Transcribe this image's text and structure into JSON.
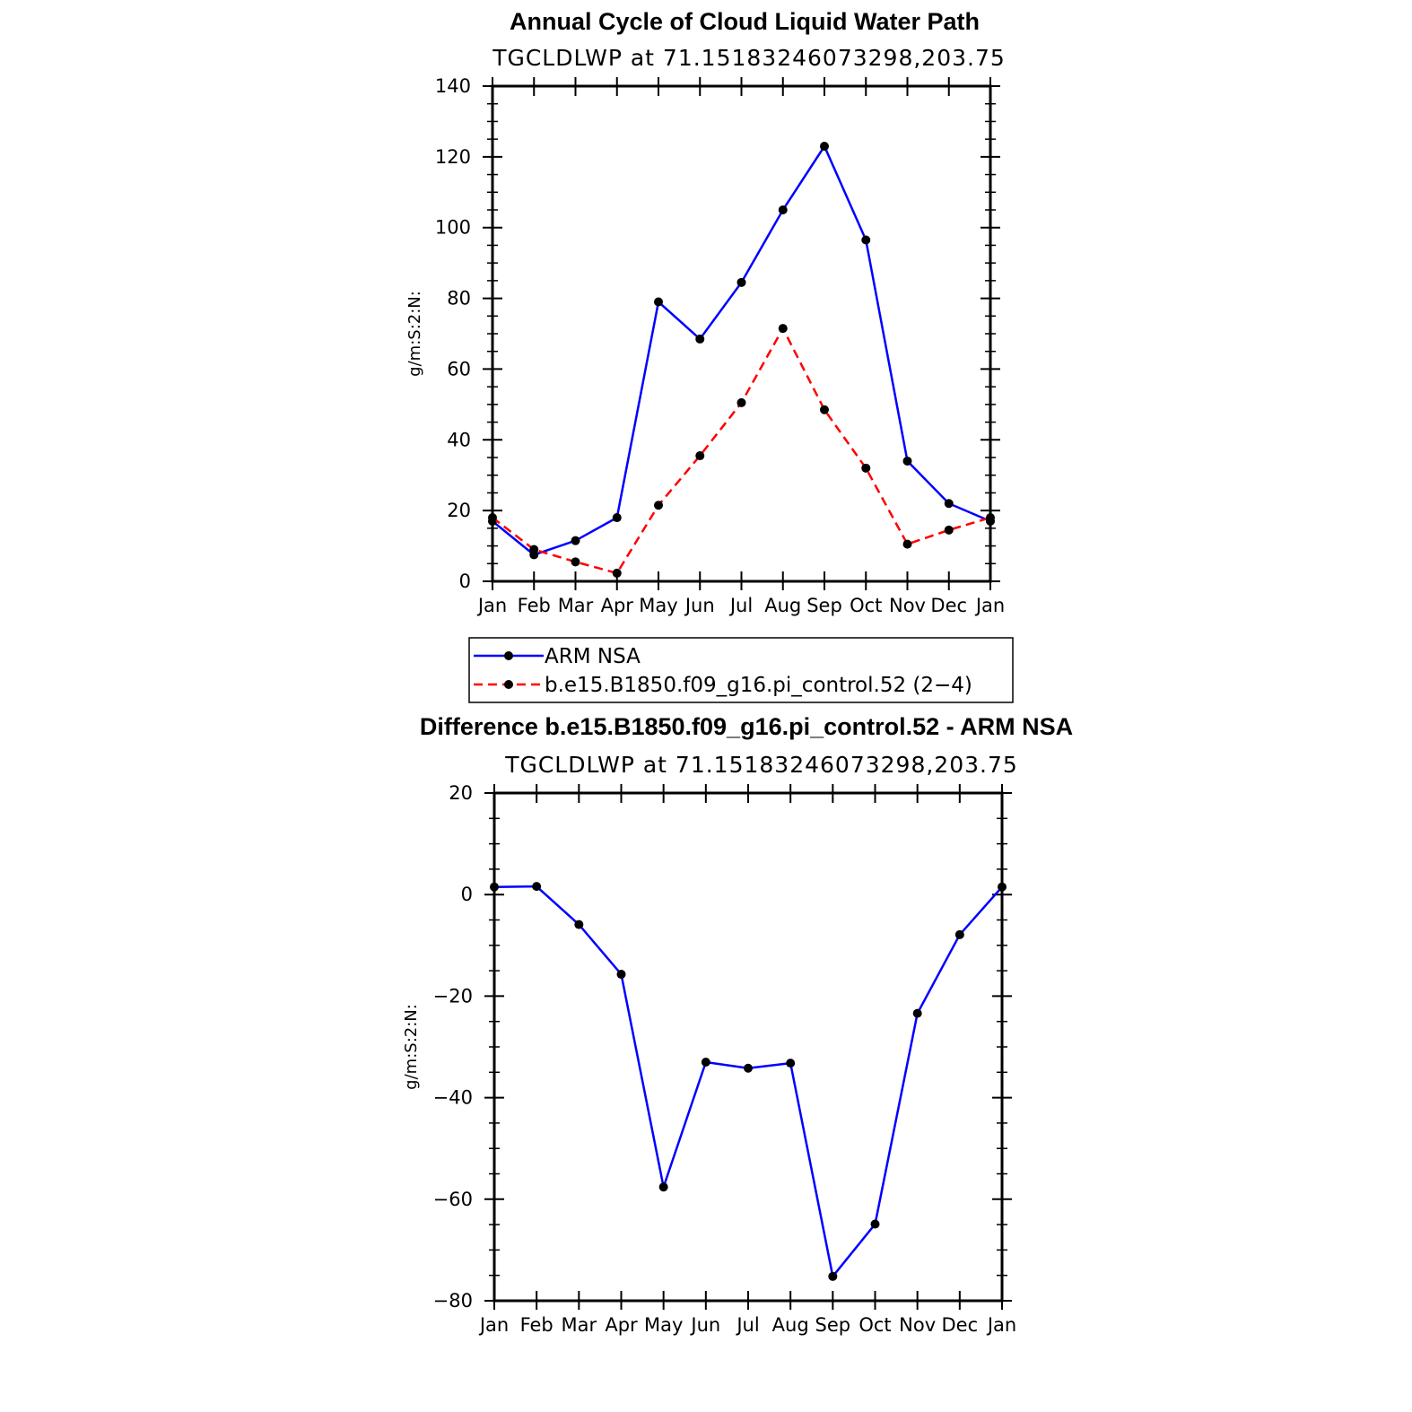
{
  "colors": {
    "obs": "#0000ff",
    "model": "#ff0000",
    "marker": "#000000",
    "axis": "#000000"
  },
  "chart_data": [
    {
      "type": "line",
      "title": "Annual Cycle of Cloud Liquid Water Path",
      "subtitle": "TGCLDLWP at 71.15183246073298,203.75",
      "xlabel": "",
      "ylabel": "g/m:S:2:N:",
      "categories": [
        "Jan",
        "Feb",
        "Mar",
        "Apr",
        "May",
        "Jun",
        "Jul",
        "Aug",
        "Sep",
        "Oct",
        "Nov",
        "Dec",
        "Jan"
      ],
      "ylim": [
        0,
        140
      ],
      "yticks": [
        0,
        20,
        40,
        60,
        80,
        100,
        120,
        140
      ],
      "series": [
        {
          "name": "ARM NSA",
          "style": "solid",
          "color": "#0000ff",
          "values": [
            17,
            7.5,
            11.5,
            18,
            79,
            68.5,
            84.5,
            105,
            123,
            96.5,
            34,
            22,
            17
          ]
        },
        {
          "name": "b.e15.B1850.f09_g16.pi_control.52 (2−4)",
          "style": "dashed",
          "color": "#ff0000",
          "values": [
            18,
            9,
            5.5,
            2.3,
            21.5,
            35.5,
            50.5,
            71.5,
            48.5,
            32,
            10.5,
            14.5,
            18
          ]
        }
      ],
      "legend": "bottom"
    },
    {
      "type": "line",
      "title": "Difference b.e15.B1850.f09_g16.pi_control.52 - ARM NSA",
      "subtitle": "TGCLDLWP at 71.15183246073298,203.75",
      "xlabel": "",
      "ylabel": "g/m:S:2:N:",
      "categories": [
        "Jan",
        "Feb",
        "Mar",
        "Apr",
        "May",
        "Jun",
        "Jul",
        "Aug",
        "Sep",
        "Oct",
        "Nov",
        "Dec",
        "Jan"
      ],
      "ylim": [
        -80,
        20
      ],
      "yticks": [
        -80,
        -60,
        -40,
        -20,
        0,
        20
      ],
      "ytick_labels": [
        "−80",
        "−60",
        "−40",
        "−20",
        "0",
        "20"
      ],
      "series": [
        {
          "style": "solid",
          "color": "#0000ff",
          "values": [
            1.5,
            1.6,
            -5.9,
            -15.7,
            -57.6,
            -33,
            -34.2,
            -33.2,
            -75.2,
            -64.9,
            -23.4,
            -7.9,
            1.5
          ]
        }
      ]
    }
  ]
}
